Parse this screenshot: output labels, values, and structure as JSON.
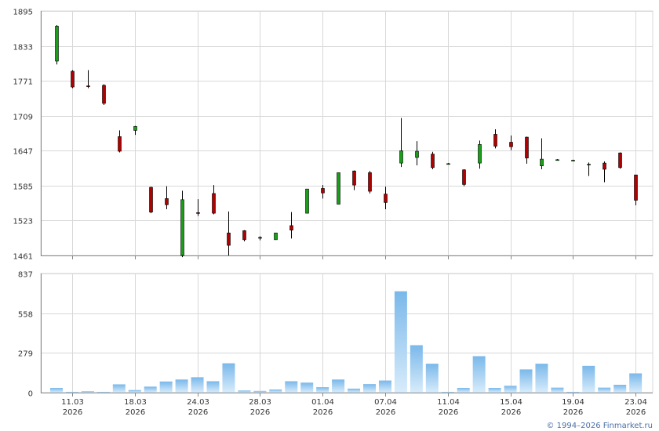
{
  "chart_data": [
    {
      "type": "candlestick",
      "yticks": [
        1461,
        1523,
        1585,
        1647,
        1709,
        1771,
        1833,
        1895
      ],
      "ylim": [
        1461,
        1895
      ],
      "grid": true,
      "colors": {
        "up": "#1a9e1a",
        "down": "#b00000",
        "wick": "#000000",
        "grid": "#d8d8d8",
        "axis": "#888888"
      },
      "candles": [
        {
          "o": 1806,
          "h": 1870,
          "l": 1800,
          "c": 1868
        },
        {
          "o": 1788,
          "h": 1790,
          "l": 1758,
          "c": 1760
        },
        {
          "o": 1762,
          "h": 1790,
          "l": 1758,
          "c": 1761
        },
        {
          "o": 1763,
          "h": 1765,
          "l": 1728,
          "c": 1731
        },
        {
          "o": 1672,
          "h": 1683,
          "l": 1644,
          "c": 1646
        },
        {
          "o": 1683,
          "h": 1691,
          "l": 1675,
          "c": 1690
        },
        {
          "o": 1582,
          "h": 1583,
          "l": 1536,
          "c": 1538
        },
        {
          "o": 1562,
          "h": 1584,
          "l": 1543,
          "c": 1551
        },
        {
          "o": 1461,
          "h": 1576,
          "l": 1458,
          "c": 1560
        },
        {
          "o": 1537,
          "h": 1561,
          "l": 1531,
          "c": 1536
        },
        {
          "o": 1571,
          "h": 1586,
          "l": 1534,
          "c": 1536
        },
        {
          "o": 1501,
          "h": 1539,
          "l": 1461,
          "c": 1479
        },
        {
          "o": 1505,
          "h": 1506,
          "l": 1486,
          "c": 1489
        },
        {
          "o": 1493,
          "h": 1495,
          "l": 1488,
          "c": 1492
        },
        {
          "o": 1489,
          "h": 1501,
          "l": 1489,
          "c": 1501
        },
        {
          "o": 1514,
          "h": 1538,
          "l": 1491,
          "c": 1506
        },
        {
          "o": 1536,
          "h": 1578,
          "l": 1536,
          "c": 1579
        },
        {
          "o": 1580,
          "h": 1586,
          "l": 1562,
          "c": 1572
        },
        {
          "o": 1552,
          "h": 1608,
          "l": 1552,
          "c": 1608
        },
        {
          "o": 1611,
          "h": 1612,
          "l": 1577,
          "c": 1586
        },
        {
          "o": 1608,
          "h": 1611,
          "l": 1571,
          "c": 1575
        },
        {
          "o": 1570,
          "h": 1583,
          "l": 1543,
          "c": 1555
        },
        {
          "o": 1625,
          "h": 1705,
          "l": 1618,
          "c": 1647
        },
        {
          "o": 1635,
          "h": 1664,
          "l": 1621,
          "c": 1646
        },
        {
          "o": 1641,
          "h": 1645,
          "l": 1614,
          "c": 1617
        },
        {
          "o": 1624,
          "h": 1625,
          "l": 1624,
          "c": 1624
        },
        {
          "o": 1613,
          "h": 1614,
          "l": 1584,
          "c": 1587
        },
        {
          "o": 1625,
          "h": 1665,
          "l": 1615,
          "c": 1658
        },
        {
          "o": 1676,
          "h": 1685,
          "l": 1651,
          "c": 1655
        },
        {
          "o": 1662,
          "h": 1674,
          "l": 1648,
          "c": 1654
        },
        {
          "o": 1671,
          "h": 1672,
          "l": 1624,
          "c": 1634
        },
        {
          "o": 1620,
          "h": 1669,
          "l": 1614,
          "c": 1632
        },
        {
          "o": 1631,
          "h": 1632,
          "l": 1630,
          "c": 1631
        },
        {
          "o": 1630,
          "h": 1631,
          "l": 1629,
          "c": 1630
        },
        {
          "o": 1623,
          "h": 1626,
          "l": 1602,
          "c": 1623
        },
        {
          "o": 1625,
          "h": 1628,
          "l": 1591,
          "c": 1614
        },
        {
          "o": 1643,
          "h": 1644,
          "l": 1615,
          "c": 1617
        },
        {
          "o": 1604,
          "h": 1604,
          "l": 1550,
          "c": 1559
        }
      ]
    },
    {
      "type": "bar",
      "yticks": [
        0,
        279,
        558,
        837
      ],
      "ylim": [
        0,
        837
      ],
      "grid": true,
      "colors": {
        "bar_top": "#7ab8ea",
        "bar_bottom": "#d8ecfb"
      },
      "values": [
        33,
        5,
        10,
        5,
        58,
        18,
        42,
        78,
        92,
        108,
        80,
        206,
        15,
        12,
        22,
        80,
        70,
        38,
        92,
        28,
        60,
        85,
        712,
        333,
        203,
        5,
        33,
        256,
        33,
        48,
        163,
        203,
        35,
        5,
        188,
        35,
        55,
        135
      ]
    }
  ],
  "xaxis": {
    "ticks": [
      {
        "index": 1,
        "date": "11.03",
        "year": "2026"
      },
      {
        "index": 5,
        "date": "18.03",
        "year": "2026"
      },
      {
        "index": 9,
        "date": "24.03",
        "year": "2026"
      },
      {
        "index": 13,
        "date": "28.03",
        "year": "2026"
      },
      {
        "index": 17,
        "date": "01.04",
        "year": "2026"
      },
      {
        "index": 21,
        "date": "07.04",
        "year": "2026"
      },
      {
        "index": 25,
        "date": "11.04",
        "year": "2026"
      },
      {
        "index": 29,
        "date": "15.04",
        "year": "2026"
      },
      {
        "index": 33,
        "date": "19.04",
        "year": "2026"
      },
      {
        "index": 37,
        "date": "23.04",
        "year": "2026"
      }
    ]
  },
  "footer": {
    "copyright": "© 1994–2026 Finmarket.ru"
  }
}
